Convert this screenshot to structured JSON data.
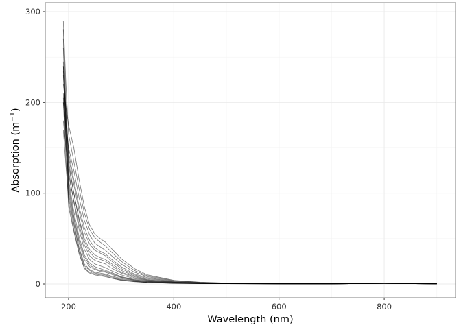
{
  "chart_data": {
    "type": "line",
    "title": "",
    "xlabel": "Wavelength (nm)",
    "ylabel": {
      "main": "Absorption (m",
      "sup": "−1",
      "close": ")"
    },
    "xlim": [
      155.7,
      935.5
    ],
    "ylim": [
      -15.1,
      309.8
    ],
    "xticks": [
      200,
      400,
      600,
      800
    ],
    "yticks": [
      0,
      100,
      200,
      300
    ],
    "grid": true,
    "legend": "none",
    "line_color": "#000000",
    "x": [
      190,
      195,
      200,
      210,
      220,
      230,
      240,
      250,
      260,
      270,
      280,
      300,
      325,
      350,
      400,
      450,
      500,
      600,
      700,
      800,
      900
    ],
    "series": [
      {
        "values": [
          220,
          195,
          175,
          150,
          115,
          85,
          65,
          55,
          50,
          46,
          40,
          28,
          17,
          10,
          4,
          2,
          1,
          0.5,
          0.3,
          0.8,
          0.3
        ]
      },
      {
        "values": [
          290,
          220,
          165,
          135,
          105,
          78,
          60,
          51,
          46,
          42,
          36,
          25,
          15,
          9,
          3.5,
          1.8,
          1,
          0.5,
          0.3,
          0.8,
          0.3
        ]
      },
      {
        "values": [
          200,
          175,
          150,
          125,
          95,
          70,
          54,
          45,
          41,
          37,
          32,
          22,
          13,
          8,
          3,
          1.5,
          0.8,
          0.4,
          0.3,
          0.7,
          0.3
        ]
      },
      {
        "values": [
          240,
          190,
          145,
          115,
          85,
          62,
          48,
          40,
          36,
          33,
          28,
          19,
          11,
          7,
          2.5,
          1.3,
          0.7,
          0.4,
          0.3,
          0.7,
          0.3
        ]
      },
      {
        "values": [
          230,
          180,
          140,
          110,
          80,
          57,
          44,
          37,
          34,
          31,
          26,
          17,
          10,
          6,
          2.2,
          1.2,
          0.7,
          0.4,
          0.3,
          0.7,
          0.3
        ]
      },
      {
        "values": [
          210,
          165,
          130,
          100,
          72,
          50,
          38,
          32,
          29,
          27,
          23,
          15,
          9,
          5,
          2,
          1,
          0.6,
          0.4,
          0.3,
          0.7,
          0.3
        ]
      },
      {
        "values": [
          280,
          200,
          135,
          100,
          70,
          47,
          35,
          29,
          27,
          25,
          21,
          13,
          8,
          4.5,
          1.8,
          1,
          0.6,
          0.3,
          0.3,
          0.7,
          0.3
        ]
      },
      {
        "values": [
          180,
          150,
          120,
          92,
          65,
          43,
          31,
          26,
          24,
          22,
          18,
          12,
          7,
          4,
          1.6,
          0.9,
          0.5,
          0.3,
          0.2,
          0.6,
          0.2
        ]
      },
      {
        "values": [
          260,
          185,
          125,
          90,
          60,
          38,
          27,
          22,
          20,
          18,
          15,
          10,
          6,
          3.5,
          1.4,
          0.8,
          0.5,
          0.3,
          0.2,
          0.6,
          0.2
        ]
      },
      {
        "values": [
          240,
          170,
          115,
          80,
          52,
          32,
          23,
          19,
          17,
          15,
          13,
          8,
          5,
          3,
          1.2,
          0.7,
          0.4,
          0.3,
          0.2,
          0.6,
          0.2
        ]
      },
      {
        "values": [
          205,
          155,
          105,
          72,
          45,
          27,
          19,
          16,
          14,
          13,
          11,
          7,
          4,
          2.5,
          1,
          0.6,
          0.4,
          0.2,
          0.2,
          0.6,
          0.2
        ]
      },
      {
        "values": [
          245,
          165,
          100,
          68,
          40,
          22,
          16,
          13,
          12,
          11,
          9,
          6,
          3.5,
          2,
          0.9,
          0.5,
          0.3,
          0.2,
          0.2,
          0.6,
          0.2
        ]
      },
      {
        "values": [
          170,
          130,
          95,
          65,
          38,
          20,
          15,
          12,
          11,
          10,
          8,
          5,
          3,
          1.8,
          0.8,
          0.5,
          0.3,
          0.2,
          0.2,
          0.6,
          0.2
        ]
      },
      {
        "values": [
          235,
          160,
          90,
          60,
          35,
          18,
          13,
          11,
          10,
          9,
          7,
          4.5,
          2.7,
          1.6,
          0.7,
          0.4,
          0.3,
          0.2,
          0.2,
          0.6,
          0.2
        ]
      },
      {
        "values": [
          200,
          140,
          85,
          58,
          33,
          17,
          12,
          10,
          9,
          8,
          6.5,
          4,
          2.5,
          1.5,
          0.7,
          0.4,
          0.3,
          0.2,
          0.2,
          0.6,
          0.2
        ]
      },
      {
        "values": [
          270,
          180,
          110,
          75,
          48,
          30,
          21,
          17,
          15,
          14,
          12,
          7.5,
          4.5,
          2.7,
          1.1,
          0.6,
          0.4,
          0.2,
          0.2,
          0.6,
          0.2
        ]
      }
    ]
  }
}
